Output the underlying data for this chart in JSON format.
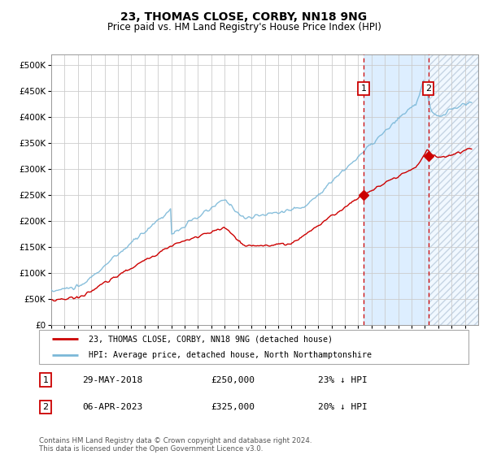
{
  "title": "23, THOMAS CLOSE, CORBY, NN18 9NG",
  "subtitle": "Price paid vs. HM Land Registry's House Price Index (HPI)",
  "legend_line1": "23, THOMAS CLOSE, CORBY, NN18 9NG (detached house)",
  "legend_line2": "HPI: Average price, detached house, North Northamptonshire",
  "annotation1_date": "29-MAY-2018",
  "annotation1_price": "£250,000",
  "annotation1_hpi": "23% ↓ HPI",
  "annotation2_date": "06-APR-2023",
  "annotation2_price": "£325,000",
  "annotation2_hpi": "20% ↓ HPI",
  "footer": "Contains HM Land Registry data © Crown copyright and database right 2024.\nThis data is licensed under the Open Government Licence v3.0.",
  "hpi_color": "#7bb8d8",
  "price_color": "#cc0000",
  "vline_color": "#cc0000",
  "background_color": "#ffffff",
  "shaded_region_color": "#ddeeff",
  "grid_color": "#cccccc",
  "ylim": [
    0,
    520000
  ],
  "yticks": [
    0,
    50000,
    100000,
    150000,
    200000,
    250000,
    300000,
    350000,
    400000,
    450000,
    500000
  ],
  "purchase1_year": 2018.41,
  "purchase2_year": 2023.27,
  "purchase1_price": 250000,
  "purchase2_price": 325000
}
